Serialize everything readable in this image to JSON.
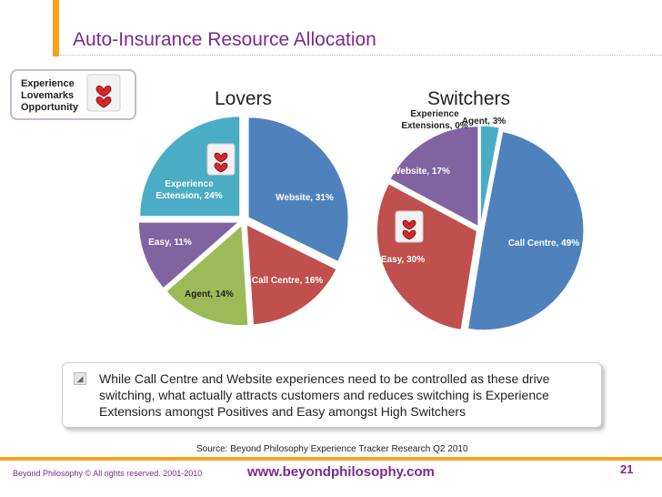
{
  "slide": {
    "title": "Auto-Insurance Resource Allocation",
    "legend_lines": [
      "Experience",
      "Lovemarks",
      "Opportunity"
    ],
    "bubble_text": "While Call Centre and Website experiences need to be controlled as these drive switching, what actually attracts customers and reduces switching is Experience Extensions amongst Positives and Easy amongst High Switchers",
    "source": "Source:  Beyond Philosophy Experience Tracker Research Q2 2010",
    "footer_left": "Beyond Philosophy © All rights reserved. 2001-2010",
    "footer_url": "www.beyondphilosophy.com",
    "page_number": "21",
    "heart_icon": "heart-lovemark-icon",
    "accent_color": "#f7a21b",
    "title_color": "#7b2a8e"
  },
  "chart_data": [
    {
      "type": "pie",
      "title": "Lovers",
      "slices": [
        {
          "label": "Website, 31%",
          "value": 31,
          "color": "#4f81bd"
        },
        {
          "label": "Call Centre, 16%",
          "value": 16,
          "color": "#c0504d"
        },
        {
          "label": "Agent, 14%",
          "value": 14,
          "color": "#9bbb59"
        },
        {
          "label": "Easy, 11%",
          "value": 11,
          "color": "#8064a2"
        },
        {
          "label": "Experience Extension, 24%",
          "value": 24,
          "color": "#4bacc6"
        }
      ]
    },
    {
      "type": "pie",
      "title": "Switchers",
      "slices": [
        {
          "label": "Agent, 3%",
          "value": 3,
          "color": "#4bacc6"
        },
        {
          "label": "Call Centre, 49%",
          "value": 49,
          "color": "#4f81bd"
        },
        {
          "label": "Easy, 30%",
          "value": 30,
          "color": "#c0504d"
        },
        {
          "label": "Website, 17%",
          "value": 17,
          "color": "#8064a2"
        },
        {
          "label": "Experience Extensions, 0%",
          "value": 0,
          "color": "#9bbb59"
        }
      ]
    }
  ]
}
